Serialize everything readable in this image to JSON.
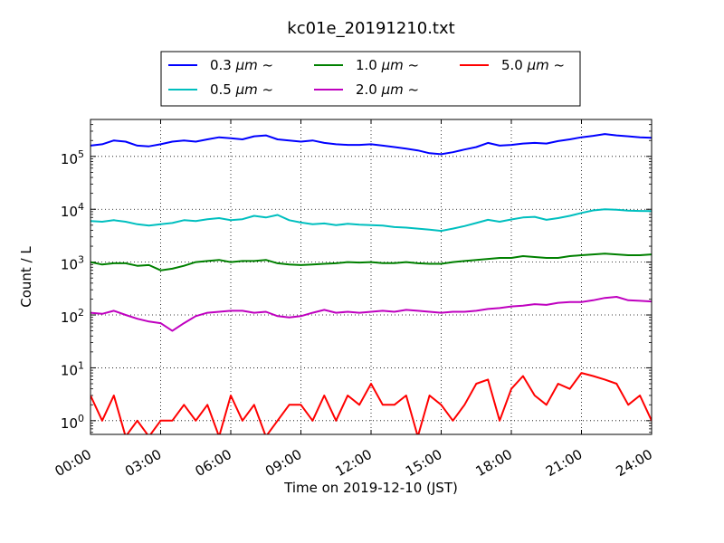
{
  "chart_data": {
    "type": "line",
    "title": "kc01e_20191210.txt",
    "xlabel": "Time on 2019-12-10 (JST)",
    "ylabel": "Count / L",
    "y_scale": "log",
    "ylim": [
      0.55,
      500000
    ],
    "xlim": [
      "00:00",
      "24:00"
    ],
    "grid": true,
    "legend_position": "top-center",
    "x_ticks": [
      "00:00",
      "03:00",
      "06:00",
      "09:00",
      "12:00",
      "15:00",
      "18:00",
      "21:00",
      "24:00"
    ],
    "y_ticks": [
      {
        "value": 1,
        "base": "10",
        "exp": "0"
      },
      {
        "value": 10,
        "base": "10",
        "exp": "1"
      },
      {
        "value": 100,
        "base": "10",
        "exp": "2"
      },
      {
        "value": 1000,
        "base": "10",
        "exp": "3"
      },
      {
        "value": 10000,
        "base": "10",
        "exp": "4"
      },
      {
        "value": 100000,
        "base": "10",
        "exp": "5"
      }
    ],
    "x": [
      "00:00",
      "00:30",
      "01:00",
      "01:30",
      "02:00",
      "02:30",
      "03:00",
      "03:30",
      "04:00",
      "04:30",
      "05:00",
      "05:30",
      "06:00",
      "06:30",
      "07:00",
      "07:30",
      "08:00",
      "08:30",
      "09:00",
      "09:30",
      "10:00",
      "10:30",
      "11:00",
      "11:30",
      "12:00",
      "12:30",
      "13:00",
      "13:30",
      "14:00",
      "14:30",
      "15:00",
      "15:30",
      "16:00",
      "16:30",
      "17:00",
      "17:30",
      "18:00",
      "18:30",
      "19:00",
      "19:30",
      "20:00",
      "20:30",
      "21:00",
      "21:30",
      "22:00",
      "22:30",
      "23:00",
      "23:30",
      "24:00"
    ],
    "series": [
      {
        "name_prefix": "0.3 ",
        "name_unit": "μm",
        "name_suffix": "  ~",
        "color": "#0000ff",
        "values": [
          160000,
          170000,
          200000,
          190000,
          160000,
          155000,
          170000,
          190000,
          200000,
          190000,
          210000,
          230000,
          220000,
          210000,
          240000,
          250000,
          210000,
          200000,
          190000,
          200000,
          180000,
          170000,
          165000,
          165000,
          170000,
          160000,
          150000,
          140000,
          130000,
          115000,
          110000,
          120000,
          135000,
          150000,
          180000,
          160000,
          165000,
          175000,
          180000,
          175000,
          195000,
          210000,
          230000,
          245000,
          265000,
          250000,
          240000,
          230000,
          225000
        ]
      },
      {
        "name_prefix": "0.5 ",
        "name_unit": "μm",
        "name_suffix": "  ~",
        "color": "#00bfbf",
        "values": [
          6000,
          5800,
          6200,
          5800,
          5200,
          4900,
          5200,
          5500,
          6200,
          6000,
          6500,
          6800,
          6200,
          6500,
          7500,
          7000,
          7800,
          6200,
          5600,
          5200,
          5400,
          5000,
          5300,
          5100,
          5000,
          4900,
          4600,
          4500,
          4300,
          4100,
          3900,
          4300,
          4800,
          5500,
          6300,
          5800,
          6400,
          7000,
          7200,
          6300,
          6800,
          7500,
          8500,
          9500,
          10000,
          9800,
          9400,
          9300,
          9200
        ]
      },
      {
        "name_prefix": "1.0 ",
        "name_unit": "μm",
        "name_suffix": "  ~",
        "color": "#008000",
        "values": [
          1000,
          900,
          950,
          950,
          850,
          880,
          700,
          750,
          850,
          1000,
          1050,
          1100,
          1000,
          1050,
          1050,
          1100,
          950,
          900,
          880,
          900,
          930,
          950,
          1000,
          980,
          1000,
          960,
          960,
          1000,
          950,
          930,
          930,
          1000,
          1050,
          1100,
          1150,
          1200,
          1200,
          1300,
          1250,
          1200,
          1200,
          1300,
          1350,
          1400,
          1450,
          1400,
          1350,
          1350,
          1400
        ]
      },
      {
        "name_prefix": "2.0 ",
        "name_unit": "μm",
        "name_suffix": "  ~",
        "color": "#bf00bf",
        "values": [
          110,
          105,
          120,
          100,
          85,
          75,
          70,
          50,
          70,
          95,
          110,
          115,
          120,
          120,
          110,
          115,
          95,
          90,
          95,
          110,
          125,
          110,
          115,
          110,
          115,
          120,
          115,
          125,
          120,
          115,
          110,
          115,
          115,
          120,
          130,
          135,
          145,
          150,
          160,
          155,
          170,
          175,
          175,
          190,
          210,
          220,
          190,
          185,
          180
        ]
      },
      {
        "name_prefix": "5.0 ",
        "name_unit": "μm",
        "name_suffix": "  ~",
        "color": "#ff0000",
        "values": [
          3,
          1,
          3,
          0.5,
          1,
          0.5,
          1,
          1,
          2,
          1,
          2,
          0.5,
          3,
          1,
          2,
          0.5,
          1,
          2,
          2,
          1,
          3,
          1,
          3,
          2,
          5,
          2,
          2,
          3,
          0.5,
          3,
          2,
          1,
          2,
          5,
          6,
          1,
          4,
          7,
          3,
          2,
          5,
          4,
          8,
          7,
          6,
          5,
          2,
          3,
          1
        ]
      }
    ]
  }
}
